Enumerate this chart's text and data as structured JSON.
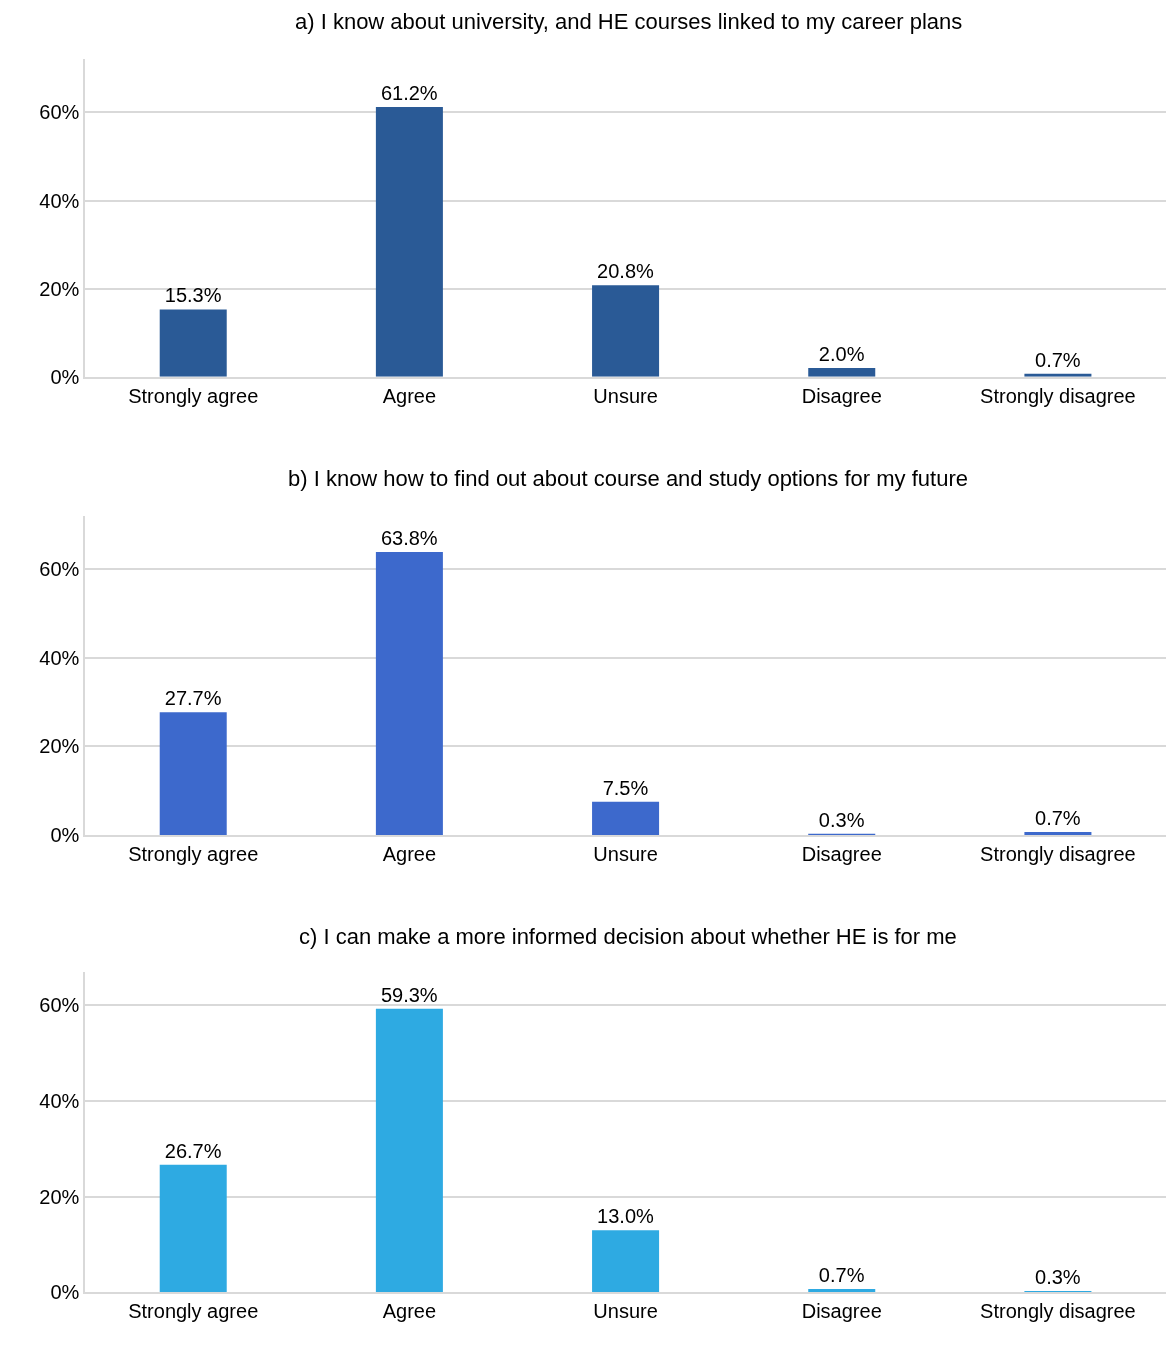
{
  "chart_data": [
    {
      "type": "bar",
      "title": "a) I know about university, and HE courses linked to my career plans",
      "categories": [
        "Strongly agree",
        "Agree",
        "Unsure",
        "Disagree",
        "Strongly disagree"
      ],
      "values": [
        15.3,
        61.2,
        20.8,
        2.0,
        0.7
      ],
      "value_labels": [
        "15.3%",
        "61.2%",
        "20.8%",
        "2.0%",
        "0.7%"
      ],
      "color": "#2a5a96",
      "ylim": [
        0,
        72
      ],
      "yticks": [
        {
          "value": 0,
          "label": "0%"
        },
        {
          "value": 20,
          "label": "20%"
        },
        {
          "value": 40,
          "label": "40%"
        },
        {
          "value": 60,
          "label": "60%"
        }
      ],
      "grid": "y"
    },
    {
      "type": "bar",
      "title": "b) I know how to find out about course and study options for my future",
      "categories": [
        "Strongly agree",
        "Agree",
        "Unsure",
        "Disagree",
        "Strongly disagree"
      ],
      "values": [
        27.7,
        63.8,
        7.5,
        0.3,
        0.7
      ],
      "value_labels": [
        "27.7%",
        "63.8%",
        "7.5%",
        "0.3%",
        "0.7%"
      ],
      "color": "#3d69cc",
      "ylim": [
        0,
        72
      ],
      "yticks": [
        {
          "value": 0,
          "label": "0%"
        },
        {
          "value": 20,
          "label": "20%"
        },
        {
          "value": 40,
          "label": "40%"
        },
        {
          "value": 60,
          "label": "60%"
        }
      ],
      "grid": "y"
    },
    {
      "type": "bar",
      "title": "c) I can make a more informed decision about whether HE is for me",
      "categories": [
        "Strongly agree",
        "Agree",
        "Unsure",
        "Disagree",
        "Strongly disagree"
      ],
      "values": [
        26.7,
        59.3,
        13.0,
        0.7,
        0.3
      ],
      "value_labels": [
        "26.7%",
        "59.3%",
        "13.0%",
        "0.7%",
        "0.3%"
      ],
      "color": "#2eaae2",
      "ylim": [
        0,
        67
      ],
      "yticks": [
        {
          "value": 0,
          "label": "0%"
        },
        {
          "value": 20,
          "label": "20%"
        },
        {
          "value": 40,
          "label": "40%"
        },
        {
          "value": 60,
          "label": "60%"
        }
      ],
      "grid": "y"
    }
  ]
}
